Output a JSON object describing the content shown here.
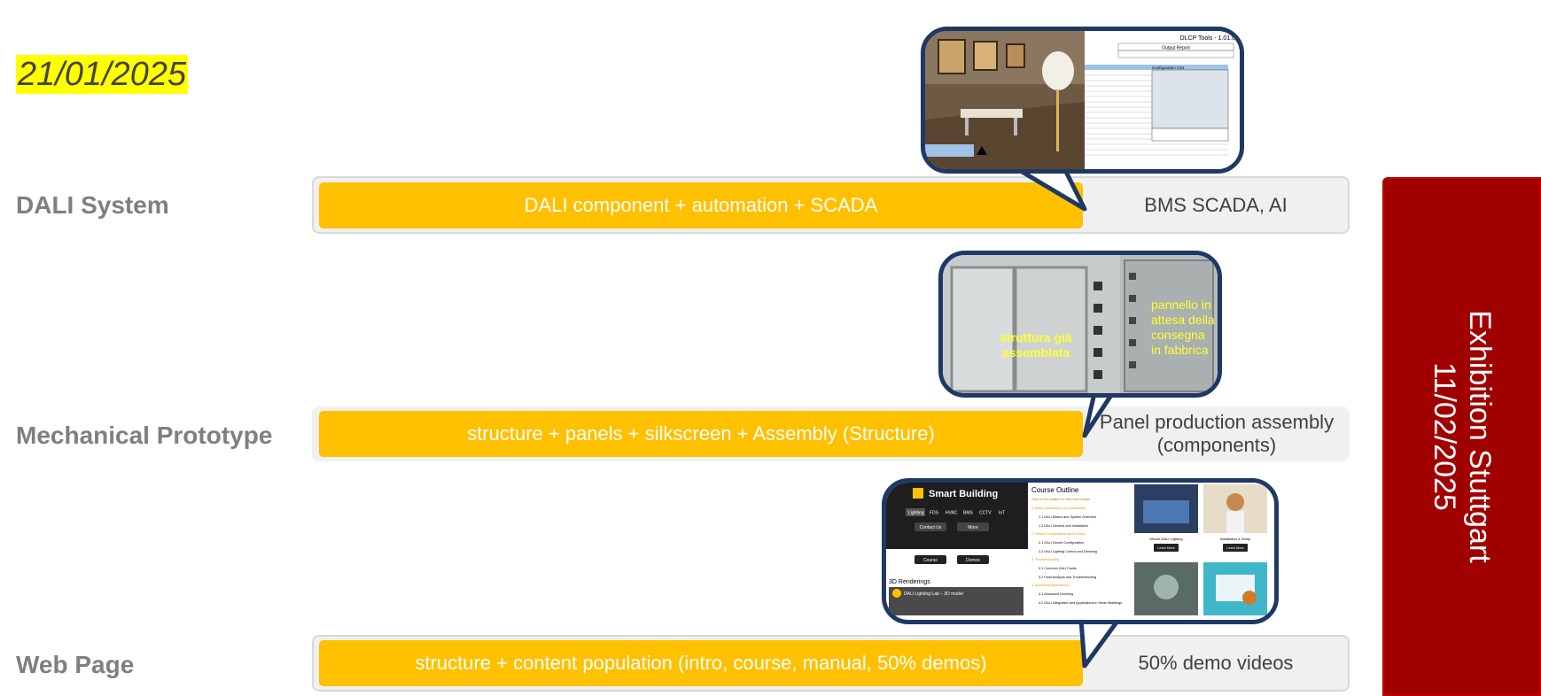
{
  "date": "21/01/2025",
  "rows": [
    {
      "label": "DALI System",
      "bar": "DALI component + automation + SCADA",
      "tail": "BMS SCADA, AI"
    },
    {
      "label": "Mechanical Prototype",
      "bar": "structure + panels + silkscreen + Assembly (Structure)",
      "tail": "Panel production assembly (components)"
    },
    {
      "label": "Web Page",
      "bar": "structure + content population (intro, course, manual, 50% demos)",
      "tail": "50% demo videos"
    }
  ],
  "exhibition": {
    "line1": "Exhibition Stuttgart",
    "line2": "11/02/2025"
  },
  "callouts": {
    "dali": {
      "header": "DLCP Tools - 1.01.0",
      "panel_title": "Output Report",
      "config_title": "Configuration CS1"
    },
    "mech": {
      "left_caption": "struttura già assemblata",
      "right_caption": "pannello in attesa della consegna in fabbrica"
    },
    "web": {
      "brand": "Smart Building",
      "nav": [
        "Lighting",
        "FDS",
        "HVAC",
        "BMS",
        "CCTV",
        "IoT"
      ],
      "buttons": [
        "Contact Us",
        "More"
      ],
      "buttons2": [
        "Course",
        "Demos"
      ],
      "renderings": "3D Renderings",
      "video_title": "DALI Lighting Lab – 3D model",
      "outline_title": "Course Outline",
      "outline_hint": "Click on the subtitles to view more details",
      "outline": [
        "1. Basic Introduction and Installation",
        "1.1 DALI Basics and System Overview",
        "1.2 DALI Devices and Installation",
        "2. Device Configuration and Control",
        "2.1 DALI Device Configuration",
        "2.2 DALI Lighting Control and Dimming",
        "3. Troubleshooting",
        "3.1 Common DALI Faults",
        "3.2 Fault Analysis and Troubleshooting",
        "4. Advanced Applications",
        "4.1 Advanced Dimming",
        "4.2 DALI Integration and Applications in Smart Buildings"
      ],
      "card1": "What's DALI Lighting",
      "card2": "Installation & Setup",
      "learn": "Learn More"
    }
  },
  "colors": {
    "bar": "#ffc000",
    "track": "#f0f0f0",
    "exhibit": "#a00000",
    "bubble_border": "#1f3864",
    "date_highlight": "#ffff00"
  }
}
